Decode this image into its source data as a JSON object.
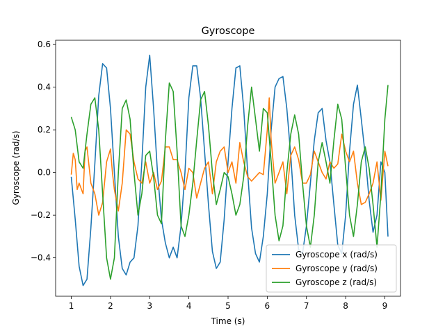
{
  "chart_data": {
    "type": "line",
    "title": "Gyroscope",
    "xlabel": "Time (s)",
    "ylabel": "Gyroscope (rad/s)",
    "xlim": [
      0.6,
      9.4
    ],
    "ylim": [
      -0.58,
      0.62
    ],
    "xticks": [
      1,
      2,
      3,
      4,
      5,
      6,
      7,
      8,
      9
    ],
    "yticks": [
      -0.4,
      -0.2,
      0.0,
      0.2,
      0.4,
      0.6
    ],
    "ytick_labels": [
      "−0.4",
      "−0.2",
      "0.0",
      "0.2",
      "0.4",
      "0.6"
    ],
    "grid": false,
    "legend": "lower-right",
    "series": [
      {
        "name": "Gyroscope x (rad/s)",
        "color": "#1f77b4",
        "points": [
          [
            1.0,
            -0.02
          ],
          [
            1.1,
            -0.22
          ],
          [
            1.2,
            -0.44
          ],
          [
            1.3,
            -0.53
          ],
          [
            1.4,
            -0.5
          ],
          [
            1.5,
            -0.26
          ],
          [
            1.6,
            0.04
          ],
          [
            1.7,
            0.36
          ],
          [
            1.8,
            0.51
          ],
          [
            1.9,
            0.49
          ],
          [
            2.0,
            0.3
          ],
          [
            2.1,
            0.0
          ],
          [
            2.2,
            -0.3
          ],
          [
            2.3,
            -0.45
          ],
          [
            2.4,
            -0.48
          ],
          [
            2.5,
            -0.42
          ],
          [
            2.6,
            -0.4
          ],
          [
            2.7,
            -0.25
          ],
          [
            2.8,
            0.05
          ],
          [
            2.9,
            0.4
          ],
          [
            3.0,
            0.55
          ],
          [
            3.1,
            0.3
          ],
          [
            3.2,
            0.0
          ],
          [
            3.3,
            -0.22
          ],
          [
            3.4,
            -0.33
          ],
          [
            3.5,
            -0.4
          ],
          [
            3.6,
            -0.35
          ],
          [
            3.7,
            -0.4
          ],
          [
            3.8,
            -0.25
          ],
          [
            3.9,
            0.0
          ],
          [
            4.0,
            0.35
          ],
          [
            4.1,
            0.5
          ],
          [
            4.2,
            0.5
          ],
          [
            4.3,
            0.35
          ],
          [
            4.4,
            0.1
          ],
          [
            4.5,
            -0.15
          ],
          [
            4.6,
            -0.37
          ],
          [
            4.7,
            -0.45
          ],
          [
            4.8,
            -0.42
          ],
          [
            4.9,
            -0.22
          ],
          [
            5.0,
            0.05
          ],
          [
            5.1,
            0.3
          ],
          [
            5.2,
            0.49
          ],
          [
            5.3,
            0.5
          ],
          [
            5.4,
            0.3
          ],
          [
            5.5,
            0.0
          ],
          [
            5.6,
            -0.26
          ],
          [
            5.7,
            -0.38
          ],
          [
            5.8,
            -0.42
          ],
          [
            5.9,
            -0.3
          ],
          [
            6.0,
            -0.1
          ],
          [
            6.1,
            0.2
          ],
          [
            6.2,
            0.4
          ],
          [
            6.3,
            0.44
          ],
          [
            6.4,
            0.45
          ],
          [
            6.5,
            0.3
          ],
          [
            6.6,
            0.08
          ],
          [
            6.7,
            -0.2
          ],
          [
            6.8,
            -0.36
          ],
          [
            6.9,
            -0.38
          ],
          [
            7.0,
            -0.25
          ],
          [
            7.1,
            -0.05
          ],
          [
            7.2,
            0.15
          ],
          [
            7.3,
            0.28
          ],
          [
            7.4,
            0.3
          ],
          [
            7.5,
            0.15
          ],
          [
            7.6,
            0.05
          ],
          [
            7.7,
            -0.15
          ],
          [
            7.8,
            -0.34
          ],
          [
            7.9,
            -0.38
          ],
          [
            8.0,
            -0.2
          ],
          [
            8.1,
            0.1
          ],
          [
            8.2,
            0.32
          ],
          [
            8.3,
            0.41
          ],
          [
            8.4,
            0.25
          ],
          [
            8.5,
            0.08
          ],
          [
            8.6,
            -0.13
          ],
          [
            8.7,
            -0.28
          ],
          [
            8.8,
            -0.2
          ],
          [
            8.9,
            0.05
          ],
          [
            9.0,
            0.0
          ],
          [
            9.08,
            -0.3
          ]
        ]
      },
      {
        "name": "Gyroscope y (rad/s)",
        "color": "#ff7f0e",
        "points": [
          [
            1.0,
            -0.01
          ],
          [
            1.05,
            0.09
          ],
          [
            1.1,
            0.06
          ],
          [
            1.15,
            -0.08
          ],
          [
            1.2,
            -0.05
          ],
          [
            1.3,
            -0.1
          ],
          [
            1.35,
            0.1
          ],
          [
            1.4,
            0.12
          ],
          [
            1.5,
            -0.05
          ],
          [
            1.6,
            -0.1
          ],
          [
            1.7,
            -0.2
          ],
          [
            1.8,
            -0.14
          ],
          [
            1.9,
            0.05
          ],
          [
            2.0,
            0.11
          ],
          [
            2.05,
            0.0
          ],
          [
            2.1,
            -0.08
          ],
          [
            2.2,
            -0.18
          ],
          [
            2.3,
            -0.05
          ],
          [
            2.4,
            0.2
          ],
          [
            2.5,
            0.18
          ],
          [
            2.6,
            0.05
          ],
          [
            2.7,
            -0.03
          ],
          [
            2.8,
            -0.05
          ],
          [
            2.9,
            0.05
          ],
          [
            3.0,
            -0.05
          ],
          [
            3.1,
            0.0
          ],
          [
            3.2,
            -0.08
          ],
          [
            3.3,
            -0.04
          ],
          [
            3.4,
            0.12
          ],
          [
            3.5,
            0.12
          ],
          [
            3.6,
            0.06
          ],
          [
            3.7,
            0.06
          ],
          [
            3.8,
            0.0
          ],
          [
            3.9,
            -0.08
          ],
          [
            4.0,
            0.02
          ],
          [
            4.1,
            0.0
          ],
          [
            4.2,
            -0.12
          ],
          [
            4.3,
            -0.05
          ],
          [
            4.4,
            0.02
          ],
          [
            4.5,
            0.05
          ],
          [
            4.6,
            -0.1
          ],
          [
            4.7,
            0.05
          ],
          [
            4.8,
            0.1
          ],
          [
            4.9,
            0.12
          ],
          [
            5.0,
            0.0
          ],
          [
            5.1,
            0.05
          ],
          [
            5.2,
            -0.05
          ],
          [
            5.3,
            0.14
          ],
          [
            5.4,
            0.05
          ],
          [
            5.5,
            -0.02
          ],
          [
            5.6,
            -0.04
          ],
          [
            5.7,
            -0.02
          ],
          [
            5.8,
            0.0
          ],
          [
            5.9,
            -0.01
          ],
          [
            6.0,
            0.2
          ],
          [
            6.05,
            0.35
          ],
          [
            6.1,
            0.15
          ],
          [
            6.2,
            -0.05
          ],
          [
            6.3,
            0.0
          ],
          [
            6.4,
            0.05
          ],
          [
            6.5,
            -0.1
          ],
          [
            6.6,
            0.08
          ],
          [
            6.7,
            0.12
          ],
          [
            6.8,
            0.06
          ],
          [
            6.9,
            -0.05
          ],
          [
            7.0,
            -0.05
          ],
          [
            7.1,
            -0.01
          ],
          [
            7.2,
            0.1
          ],
          [
            7.3,
            0.05
          ],
          [
            7.4,
            0.0
          ],
          [
            7.5,
            -0.03
          ],
          [
            7.6,
            0.05
          ],
          [
            7.7,
            0.02
          ],
          [
            7.8,
            0.04
          ],
          [
            7.9,
            0.18
          ],
          [
            8.0,
            0.1
          ],
          [
            8.1,
            0.05
          ],
          [
            8.2,
            0.1
          ],
          [
            8.3,
            -0.05
          ],
          [
            8.4,
            -0.15
          ],
          [
            8.5,
            -0.14
          ],
          [
            8.6,
            -0.1
          ],
          [
            8.7,
            -0.05
          ],
          [
            8.8,
            0.05
          ],
          [
            8.9,
            -0.13
          ],
          [
            9.0,
            0.1
          ],
          [
            9.08,
            0.03
          ]
        ]
      },
      {
        "name": "Gyroscope z (rad/s)",
        "color": "#2ca02c",
        "points": [
          [
            1.0,
            0.26
          ],
          [
            1.1,
            0.2
          ],
          [
            1.2,
            0.05
          ],
          [
            1.3,
            0.02
          ],
          [
            1.4,
            0.18
          ],
          [
            1.5,
            0.32
          ],
          [
            1.6,
            0.35
          ],
          [
            1.7,
            0.2
          ],
          [
            1.8,
            -0.1
          ],
          [
            1.9,
            -0.4
          ],
          [
            2.0,
            -0.5
          ],
          [
            2.1,
            -0.4
          ],
          [
            2.2,
            0.0
          ],
          [
            2.3,
            0.3
          ],
          [
            2.4,
            0.34
          ],
          [
            2.5,
            0.25
          ],
          [
            2.6,
            0.0
          ],
          [
            2.7,
            -0.2
          ],
          [
            2.8,
            -0.1
          ],
          [
            2.9,
            0.08
          ],
          [
            3.0,
            0.1
          ],
          [
            3.1,
            -0.02
          ],
          [
            3.2,
            -0.2
          ],
          [
            3.3,
            -0.24
          ],
          [
            3.4,
            0.15
          ],
          [
            3.5,
            0.42
          ],
          [
            3.6,
            0.38
          ],
          [
            3.7,
            0.1
          ],
          [
            3.8,
            -0.25
          ],
          [
            3.9,
            -0.3
          ],
          [
            4.0,
            -0.2
          ],
          [
            4.1,
            -0.05
          ],
          [
            4.2,
            0.15
          ],
          [
            4.3,
            0.34
          ],
          [
            4.4,
            0.38
          ],
          [
            4.5,
            0.22
          ],
          [
            4.6,
            0.0
          ],
          [
            4.7,
            -0.15
          ],
          [
            4.8,
            -0.08
          ],
          [
            4.9,
            0.0
          ],
          [
            5.0,
            -0.02
          ],
          [
            5.1,
            -0.1
          ],
          [
            5.2,
            -0.2
          ],
          [
            5.3,
            -0.15
          ],
          [
            5.4,
            -0.02
          ],
          [
            5.5,
            0.22
          ],
          [
            5.6,
            0.4
          ],
          [
            5.7,
            0.25
          ],
          [
            5.8,
            0.1
          ],
          [
            5.9,
            0.3
          ],
          [
            6.0,
            0.28
          ],
          [
            6.1,
            0.05
          ],
          [
            6.2,
            -0.2
          ],
          [
            6.3,
            -0.32
          ],
          [
            6.4,
            -0.25
          ],
          [
            6.5,
            0.0
          ],
          [
            6.6,
            0.18
          ],
          [
            6.7,
            0.27
          ],
          [
            6.8,
            0.18
          ],
          [
            6.9,
            -0.05
          ],
          [
            7.0,
            -0.25
          ],
          [
            7.1,
            -0.35
          ],
          [
            7.2,
            -0.2
          ],
          [
            7.3,
            0.05
          ],
          [
            7.4,
            0.14
          ],
          [
            7.5,
            0.05
          ],
          [
            7.6,
            -0.05
          ],
          [
            7.7,
            0.15
          ],
          [
            7.8,
            0.32
          ],
          [
            7.9,
            0.25
          ],
          [
            8.0,
            0.02
          ],
          [
            8.1,
            -0.2
          ],
          [
            8.2,
            -0.3
          ],
          [
            8.3,
            -0.15
          ],
          [
            8.4,
            0.05
          ],
          [
            8.5,
            0.12
          ],
          [
            8.6,
            0.02
          ],
          [
            8.7,
            -0.15
          ],
          [
            8.8,
            -0.35
          ],
          [
            8.9,
            -0.1
          ],
          [
            9.0,
            0.25
          ],
          [
            9.08,
            0.41
          ]
        ]
      }
    ]
  }
}
